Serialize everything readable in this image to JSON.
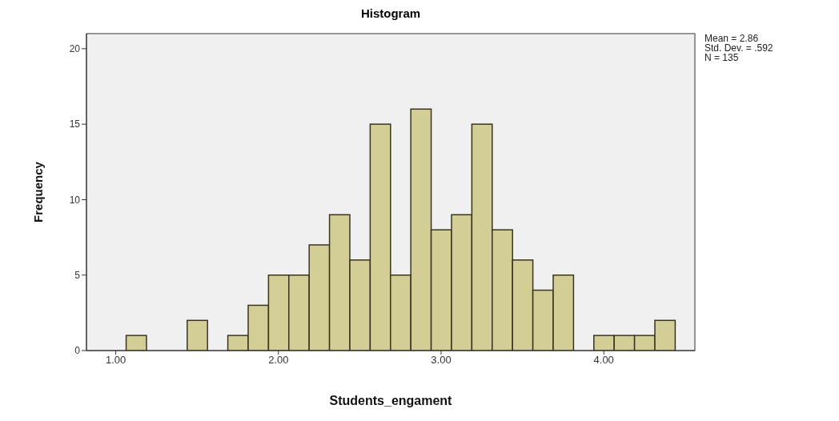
{
  "chart_data": {
    "type": "histogram",
    "title": "Histogram",
    "xlabel": "Students_engament",
    "ylabel": "Frequency",
    "bins": [
      1.0625,
      1.1875,
      1.3125,
      1.4375,
      1.5625,
      1.6875,
      1.8125,
      1.9375,
      2.0625,
      2.1875,
      2.3125,
      2.4375,
      2.5625,
      2.6875,
      2.8125,
      2.9375,
      3.0625,
      3.1875,
      3.3125,
      3.4375,
      3.5625,
      3.6875,
      3.8125,
      3.9375,
      4.0625,
      4.1875,
      4.3125,
      4.4375
    ],
    "values": [
      1,
      0,
      0,
      2,
      0,
      1,
      3,
      5,
      5,
      7,
      9,
      6,
      15,
      5,
      16,
      8,
      9,
      15,
      8,
      6,
      4,
      5,
      0,
      1,
      1,
      1,
      2
    ],
    "color": "#d3cd96",
    "xlim": [
      0.82,
      4.56
    ],
    "xticks": [
      {
        "value": 1,
        "label": "1.00"
      },
      {
        "value": 2,
        "label": "2.00"
      },
      {
        "value": 3,
        "label": "3.00"
      },
      {
        "value": 4,
        "label": "4.00"
      }
    ],
    "ylim": [
      0,
      21
    ],
    "yticks": [
      0,
      5,
      10,
      15,
      20
    ],
    "annotations": [
      "Mean = 2.86",
      "Std. Dev. = .592",
      "N = 135"
    ]
  }
}
